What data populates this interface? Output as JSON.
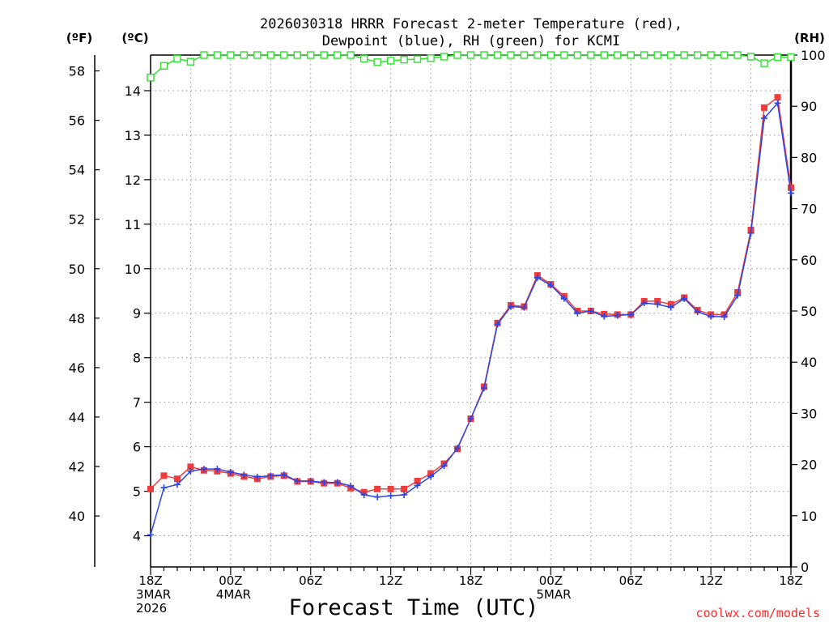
{
  "chart_data": {
    "type": "line",
    "title": [
      "2026030318 HRRR Forecast 2-meter Temperature (red),",
      "Dewpoint (blue), RH (green) for KCMI"
    ],
    "units": {
      "fahrenheit": "(ºF)",
      "celsius": "(ºC)",
      "rh": "(RH)"
    },
    "xlabel": "Forecast Time (UTC)",
    "credit": "coolwx.com/models",
    "x": {
      "start_hour": 0,
      "end_hour": 48,
      "step_hours": 1,
      "tick_every_hours": 6
    },
    "x_ticks": [
      {
        "hour": 0,
        "lines": [
          "18Z",
          "3MAR",
          "2026"
        ]
      },
      {
        "hour": 6,
        "lines": [
          "00Z",
          "4MAR"
        ]
      },
      {
        "hour": 12,
        "lines": [
          "06Z"
        ]
      },
      {
        "hour": 18,
        "lines": [
          "12Z"
        ]
      },
      {
        "hour": 24,
        "lines": [
          "18Z"
        ]
      },
      {
        "hour": 30,
        "lines": [
          "00Z",
          "5MAR"
        ]
      },
      {
        "hour": 36,
        "lines": [
          "06Z"
        ]
      },
      {
        "hour": 42,
        "lines": [
          "12Z"
        ]
      },
      {
        "hour": 48,
        "lines": [
          "18Z"
        ]
      }
    ],
    "ylim_celsius": [
      3.3,
      14.8
    ],
    "ylim_rh": [
      0,
      100
    ],
    "yticks_celsius": [
      4,
      5,
      6,
      7,
      8,
      9,
      10,
      11,
      12,
      13,
      14
    ],
    "yticks_fahrenheit": [
      40,
      42,
      44,
      46,
      48,
      50,
      52,
      54,
      56,
      58
    ],
    "yticks_rh": [
      0,
      10,
      20,
      30,
      40,
      50,
      60,
      70,
      80,
      90,
      100
    ],
    "series": [
      {
        "name": "Temperature",
        "color": "#ee3b3b",
        "marker": "square",
        "axis": "celsius",
        "values": [
          5.05,
          5.35,
          5.28,
          5.55,
          5.47,
          5.45,
          5.4,
          5.33,
          5.28,
          5.33,
          5.35,
          5.22,
          5.22,
          5.18,
          5.18,
          5.07,
          4.98,
          5.05,
          5.05,
          5.05,
          5.23,
          5.4,
          5.62,
          5.95,
          6.63,
          7.35,
          8.78,
          9.18,
          9.15,
          9.85,
          9.65,
          9.38,
          9.05,
          9.05,
          8.98,
          8.97,
          8.97,
          9.27,
          9.27,
          9.2,
          9.35,
          9.07,
          8.97,
          8.97,
          9.47,
          10.87,
          13.62,
          13.85,
          11.82
        ]
      },
      {
        "name": "Dewpoint",
        "color": "#2b45e6",
        "marker": "plus",
        "axis": "celsius",
        "values": [
          4.02,
          5.08,
          5.15,
          5.45,
          5.5,
          5.5,
          5.43,
          5.37,
          5.32,
          5.35,
          5.37,
          5.23,
          5.23,
          5.2,
          5.2,
          5.12,
          4.92,
          4.87,
          4.9,
          4.92,
          5.13,
          5.33,
          5.57,
          5.97,
          6.63,
          7.32,
          8.75,
          9.15,
          9.13,
          9.8,
          9.63,
          9.33,
          9.0,
          9.05,
          8.93,
          8.95,
          8.97,
          9.23,
          9.2,
          9.13,
          9.33,
          9.03,
          8.93,
          8.92,
          9.4,
          10.8,
          13.38,
          13.72,
          11.7
        ]
      },
      {
        "name": "RH",
        "color": "#2ee22e",
        "marker": "open-square",
        "axis": "rh",
        "values": [
          95.6,
          97.9,
          99.3,
          98.7,
          100,
          100,
          100,
          100,
          100,
          100,
          100,
          100,
          100,
          100,
          100,
          100,
          99.3,
          98.6,
          98.9,
          99.1,
          99.2,
          99.4,
          99.7,
          100,
          100,
          100,
          100,
          100,
          100,
          100,
          100,
          100,
          100,
          100,
          100,
          100,
          100,
          100,
          100,
          100,
          100,
          100,
          100,
          100,
          100,
          99.7,
          98.4,
          99.6,
          99.6
        ]
      }
    ]
  }
}
